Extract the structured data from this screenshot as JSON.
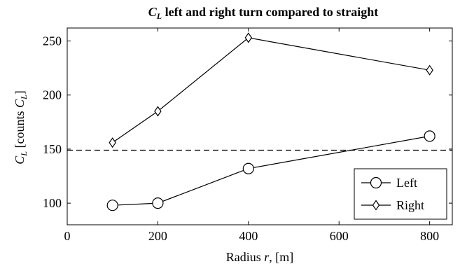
{
  "chart_data": {
    "type": "line",
    "title": "C_L left and right turn compared to straight",
    "title_main": "C",
    "title_sub": "L",
    "title_rest": " left and right turn compared to straight",
    "xlabel": "Radius r, [m]",
    "xlabel_pre": "Radius ",
    "xlabel_var": "r",
    "xlabel_post": ", [m]",
    "ylabel": "C_L [counts C_L]",
    "ylabel_main": "C",
    "ylabel_sub": "L",
    "ylabel_mid": " [counts ",
    "ylabel_end": "]",
    "xlim": [
      0,
      850
    ],
    "ylim": [
      80,
      262
    ],
    "xticks": [
      0,
      200,
      400,
      600,
      800
    ],
    "yticks": [
      100,
      150,
      200,
      250
    ],
    "grid": false,
    "legend_position": "bottom-right",
    "series": [
      {
        "name": "Left",
        "marker": "circle",
        "x": [
          100,
          200,
          400,
          800
        ],
        "y": [
          98,
          100,
          132,
          162
        ]
      },
      {
        "name": "Right",
        "marker": "diamond",
        "x": [
          100,
          200,
          400,
          800
        ],
        "y": [
          156,
          185,
          253,
          223
        ]
      }
    ],
    "reference_line": {
      "y": 149,
      "style": "dashed"
    }
  }
}
